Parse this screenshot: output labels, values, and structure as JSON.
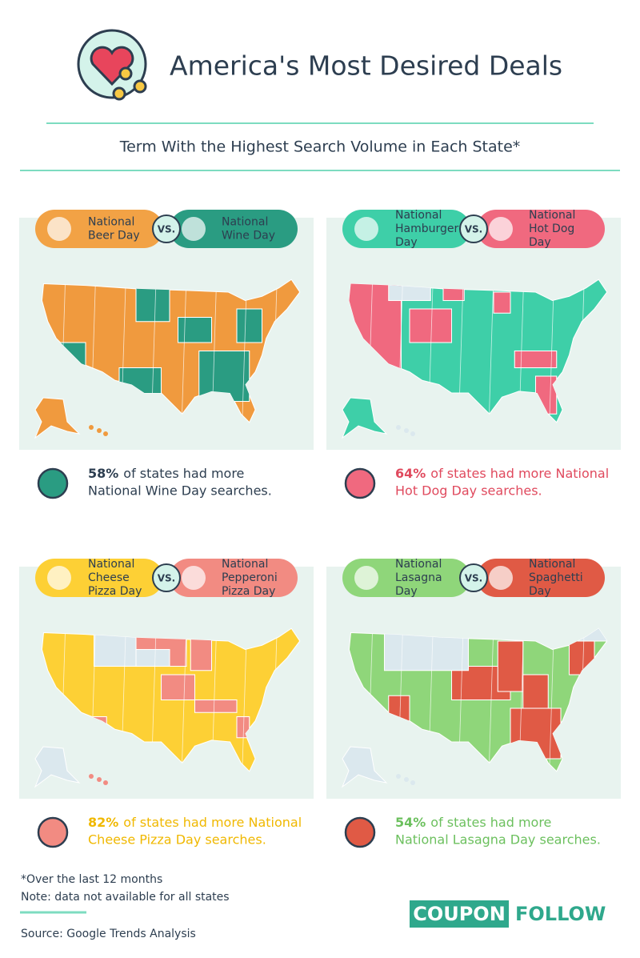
{
  "header": {
    "title": "America's Most Desired Deals",
    "subtitle": "Term With the Highest Search Volume in Each State*"
  },
  "panels": [
    {
      "left": {
        "lines": [
          "National",
          "Beer Day"
        ]
      },
      "vs": "VS.",
      "right": {
        "lines": [
          "National",
          "Wine Day"
        ]
      },
      "stat": {
        "percent": "58%",
        "lines": [
          "of states had more",
          "National Wine Day searches."
        ]
      }
    },
    {
      "left": {
        "lines": [
          "National",
          "Hamburger",
          "Day"
        ]
      },
      "vs": "VS.",
      "right": {
        "lines": [
          "National",
          "Hot Dog",
          "Day"
        ]
      },
      "stat": {
        "percent": "64%",
        "lines": [
          "of states had more National",
          "Hot Dog Day searches."
        ]
      }
    },
    {
      "left": {
        "lines": [
          "National",
          "Cheese",
          "Pizza Day"
        ]
      },
      "vs": "VS.",
      "right": {
        "lines": [
          "National",
          "Pepperoni",
          "Pizza Day"
        ]
      },
      "stat": {
        "percent": "82%",
        "lines": [
          "of states had more National",
          "Cheese Pizza Day searches."
        ]
      }
    },
    {
      "left": {
        "lines": [
          "National",
          "Lasagna",
          "Day"
        ]
      },
      "vs": "VS.",
      "right": {
        "lines": [
          "National",
          "Spaghetti",
          "Day"
        ]
      },
      "stat": {
        "percent": "54%",
        "lines": [
          "of states had more",
          "National Lasagna Day searches."
        ]
      }
    }
  ],
  "footnotes": [
    "*Over the last 12 months",
    "Note: data not available for all states"
  ],
  "source": "Source: Google Trends Analysis",
  "logo": {
    "left": "COUPON",
    "right": "FOLLOW"
  }
}
